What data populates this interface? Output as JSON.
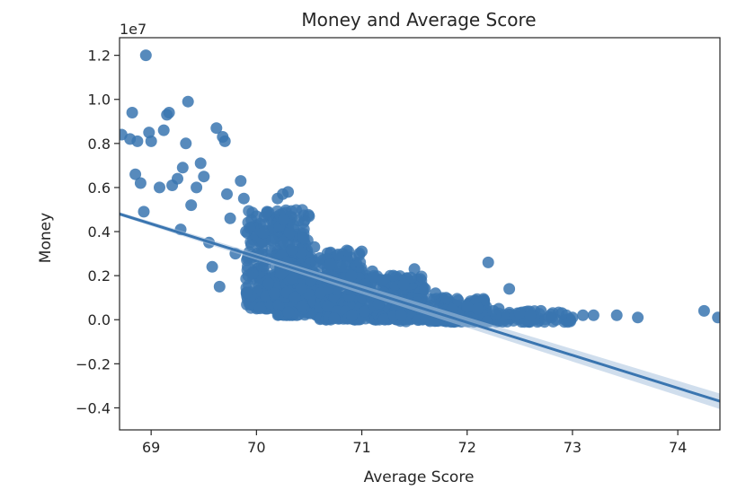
{
  "chart_data": {
    "type": "scatter",
    "title": "Money and Average Score",
    "xlabel": "Average Score",
    "ylabel": "Money",
    "offset_label": "1e7",
    "xlim": [
      68.7,
      74.4
    ],
    "ylim": [
      -0.5,
      1.28
    ],
    "xticks": [
      69,
      70,
      71,
      72,
      73,
      74
    ],
    "xtick_labels": [
      "69",
      "70",
      "71",
      "72",
      "73",
      "74"
    ],
    "yticks": [
      -0.4,
      -0.2,
      0.0,
      0.2,
      0.4,
      0.6,
      0.8,
      1.0,
      1.2
    ],
    "ytick_labels": [
      "−0.4",
      "−0.2",
      "0.0",
      "0.2",
      "0.4",
      "0.6",
      "0.8",
      "1.0",
      "1.2"
    ],
    "grid": false,
    "colors": {
      "points": "#3a75b0",
      "line": "#3a75b0",
      "band": "#a9c3df",
      "axis": "#262626"
    },
    "regression": {
      "x": [
        68.7,
        74.4
      ],
      "y": [
        0.48,
        -0.37
      ],
      "ci_halfwidth_start": 0.008,
      "ci_halfwidth_end": 0.035
    },
    "points": {
      "x": [
        68.72,
        68.8,
        68.82,
        68.85,
        68.87,
        68.9,
        68.93,
        68.95,
        68.98,
        69.0,
        69.08,
        69.12,
        69.15,
        69.17,
        69.2,
        69.25,
        69.28,
        69.3,
        69.33,
        69.35,
        69.38,
        69.43,
        69.47,
        69.5,
        69.55,
        69.58,
        69.62,
        69.65,
        69.68,
        69.7,
        69.72,
        69.75,
        69.8,
        69.85,
        69.88,
        69.9,
        69.92,
        69.95,
        70.0,
        70.05,
        70.1,
        70.15,
        70.17,
        70.2,
        70.25,
        70.3,
        70.35,
        70.4,
        70.45,
        70.5,
        70.55,
        70.6,
        70.7,
        70.8,
        70.9,
        71.0,
        71.1,
        71.2,
        71.3,
        71.4,
        71.5,
        71.6,
        71.7,
        71.8,
        72.0,
        72.1,
        72.2,
        72.25,
        72.3,
        72.4,
        72.5,
        72.6,
        72.7,
        72.8,
        72.9,
        73.0,
        73.1,
        73.2,
        73.42,
        73.62,
        74.25,
        74.38
      ],
      "y": [
        0.84,
        0.82,
        0.94,
        0.66,
        0.81,
        0.62,
        0.49,
        1.2,
        0.85,
        0.81,
        0.6,
        0.86,
        0.93,
        0.94,
        0.61,
        0.64,
        0.41,
        0.69,
        0.8,
        0.99,
        0.52,
        0.6,
        0.71,
        0.65,
        0.35,
        0.24,
        0.87,
        0.15,
        0.83,
        0.81,
        0.57,
        0.46,
        0.3,
        0.63,
        0.55,
        0.4,
        0.2,
        0.34,
        0.47,
        0.3,
        0.49,
        0.36,
        0.12,
        0.55,
        0.57,
        0.58,
        0.43,
        0.45,
        0.37,
        0.47,
        0.33,
        0.28,
        0.25,
        0.24,
        0.2,
        0.31,
        0.22,
        0.18,
        0.2,
        0.16,
        0.23,
        0.14,
        0.12,
        0.1,
        0.06,
        0.05,
        0.26,
        0.04,
        0.05,
        0.14,
        0.03,
        0.02,
        0.04,
        0.01,
        0.03,
        0.01,
        0.02,
        0.02,
        0.02,
        0.01,
        0.04,
        0.01
      ],
      "dense_cloud": [
        {
          "x_range": [
            69.9,
            70.5
          ],
          "y_range": [
            0.05,
            0.5
          ],
          "n": 380
        },
        {
          "x_range": [
            70.2,
            71.0
          ],
          "y_range": [
            0.02,
            0.32
          ],
          "n": 420
        },
        {
          "x_range": [
            70.6,
            71.6
          ],
          "y_range": [
            0.0,
            0.2
          ],
          "n": 380
        },
        {
          "x_range": [
            71.3,
            72.2
          ],
          "y_range": [
            -0.01,
            0.1
          ],
          "n": 220
        },
        {
          "x_range": [
            72.0,
            73.0
          ],
          "y_range": [
            -0.01,
            0.04
          ],
          "n": 90
        }
      ]
    }
  }
}
